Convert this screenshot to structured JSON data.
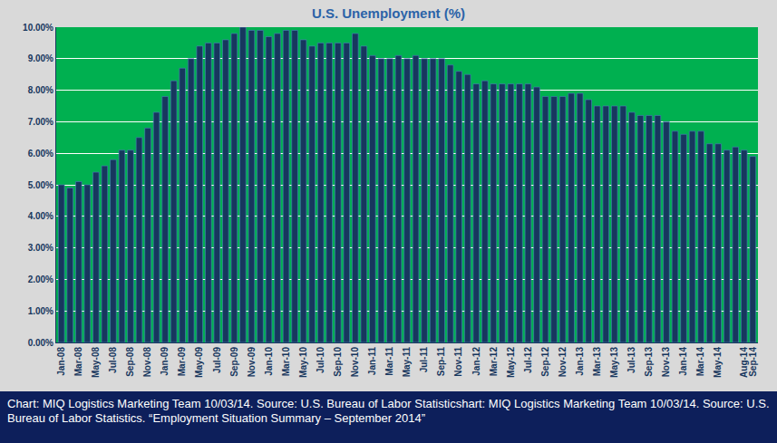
{
  "chart_data": {
    "type": "bar",
    "title": "U.S. Unemployment (%)",
    "categories": [
      "Jan-08",
      null,
      "Mar-08",
      null,
      "May-08",
      null,
      "Jul-08",
      null,
      "Sep-08",
      null,
      "Nov-08",
      null,
      "Jan-09",
      null,
      "Mar-09",
      null,
      "May-09",
      null,
      "Jul-09",
      null,
      "Sep-09",
      null,
      "Nov-09",
      null,
      "Jan-10",
      null,
      "Mar-10",
      null,
      "May-10",
      null,
      "Jul-10",
      null,
      "Sep-10",
      null,
      "Nov-10",
      null,
      "Jan-11",
      null,
      "Mar-11",
      null,
      "May-11",
      null,
      "Jul-11",
      null,
      "Sep-11",
      null,
      "Nov-11",
      null,
      "Jan-12",
      null,
      "Mar-12",
      null,
      "May-12",
      null,
      "Jul-12",
      null,
      "Sep-12",
      null,
      "Nov-12",
      null,
      "Jan-13",
      null,
      "Mar-13",
      null,
      "May-13",
      null,
      "Jul-13",
      null,
      "Sep-13",
      null,
      "Nov-13",
      null,
      "Jan-14",
      null,
      "Mar-14",
      null,
      "May-14",
      null,
      null,
      "Aug-14",
      "Sep-14"
    ],
    "values": [
      5.0,
      4.9,
      5.1,
      5.0,
      5.4,
      5.6,
      5.8,
      6.1,
      6.1,
      6.5,
      6.8,
      7.3,
      7.8,
      8.3,
      8.7,
      9.0,
      9.4,
      9.5,
      9.5,
      9.6,
      9.8,
      10.0,
      9.9,
      9.9,
      9.7,
      9.8,
      9.9,
      9.9,
      9.6,
      9.4,
      9.5,
      9.5,
      9.5,
      9.5,
      9.8,
      9.4,
      9.1,
      9.0,
      9.0,
      9.1,
      9.0,
      9.1,
      9.0,
      9.0,
      9.0,
      8.8,
      8.6,
      8.5,
      8.2,
      8.3,
      8.2,
      8.2,
      8.2,
      8.2,
      8.2,
      8.1,
      7.8,
      7.8,
      7.8,
      7.9,
      7.9,
      7.7,
      7.5,
      7.5,
      7.5,
      7.5,
      7.3,
      7.2,
      7.2,
      7.2,
      7.0,
      6.7,
      6.6,
      6.7,
      6.7,
      6.3,
      6.3,
      6.1,
      6.2,
      6.1,
      5.9
    ],
    "color": "#17375e",
    "ylim": [
      0,
      10
    ],
    "yticks": [
      {
        "value": 0,
        "label": "0.00%"
      },
      {
        "value": 1,
        "label": "1.00%"
      },
      {
        "value": 2,
        "label": "2.00%"
      },
      {
        "value": 3,
        "label": "3.00%"
      },
      {
        "value": 4,
        "label": "4.00%"
      },
      {
        "value": 5,
        "label": "5.00%"
      },
      {
        "value": 6,
        "label": "6.00%"
      },
      {
        "value": 7,
        "label": "7.00%"
      },
      {
        "value": 8,
        "label": "8.00%"
      },
      {
        "value": 9,
        "label": "9.00%"
      },
      {
        "value": 10,
        "label": "10.00%"
      }
    ],
    "grid": true,
    "annotations": [
      "Chart: MIQ Logistics Marketing Team 10/03/14.  Source: U.S. Bureau of Labor Statisticshart: MIQ Logistics Marketing Team 10/03/14.  Source: U.S. Bureau of Labor Statistics. “Employment Situation Summary – September 2014”"
    ]
  }
}
